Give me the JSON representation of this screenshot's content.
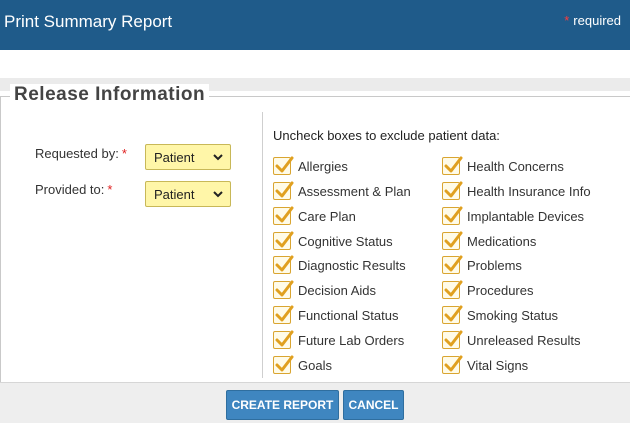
{
  "header": {
    "title": "Print Summary Report",
    "required_star": "*",
    "required_label": "required"
  },
  "release": {
    "legend": "Release Information",
    "requested_by": {
      "label": "Requested by:",
      "star": "*",
      "value": "Patient"
    },
    "provided_to": {
      "label": "Provided to:",
      "star": "*",
      "value": "Patient"
    },
    "instructions": "Uncheck boxes to exclude patient data:",
    "left_items": [
      "Allergies",
      "Assessment & Plan",
      "Care Plan",
      "Cognitive Status",
      "Diagnostic Results",
      "Decision Aids",
      "Functional Status",
      "Future Lab Orders",
      "Goals"
    ],
    "right_items": [
      "Health Concerns",
      "Health Insurance Info",
      "Implantable Devices",
      "Medications",
      "Problems",
      "Procedures",
      "Smoking Status",
      "Unreleased Results",
      "Vital Signs"
    ]
  },
  "buttons": {
    "create": "CREATE REPORT",
    "cancel": "CANCEL"
  },
  "colors": {
    "header_bg": "#1f5b8a",
    "select_bg": "#fff6a8",
    "checkmark": "#e0a020",
    "button_bg": "#3f86c0"
  }
}
